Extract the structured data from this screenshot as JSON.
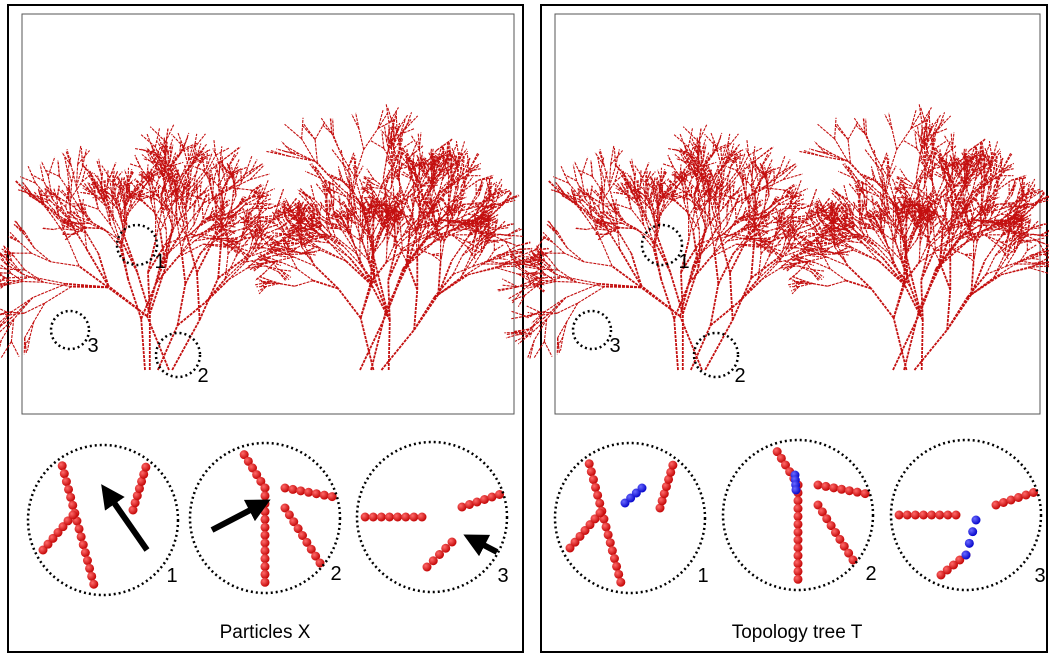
{
  "panels": [
    {
      "caption": "Particles X",
      "overview_labels": [
        "1",
        "3",
        "2"
      ],
      "zoom_labels": [
        "1",
        "2",
        "3"
      ]
    },
    {
      "caption": "Topology tree T",
      "overview_labels": [
        "1",
        "3",
        "2"
      ],
      "zoom_labels": [
        "1",
        "2",
        "3"
      ]
    }
  ]
}
